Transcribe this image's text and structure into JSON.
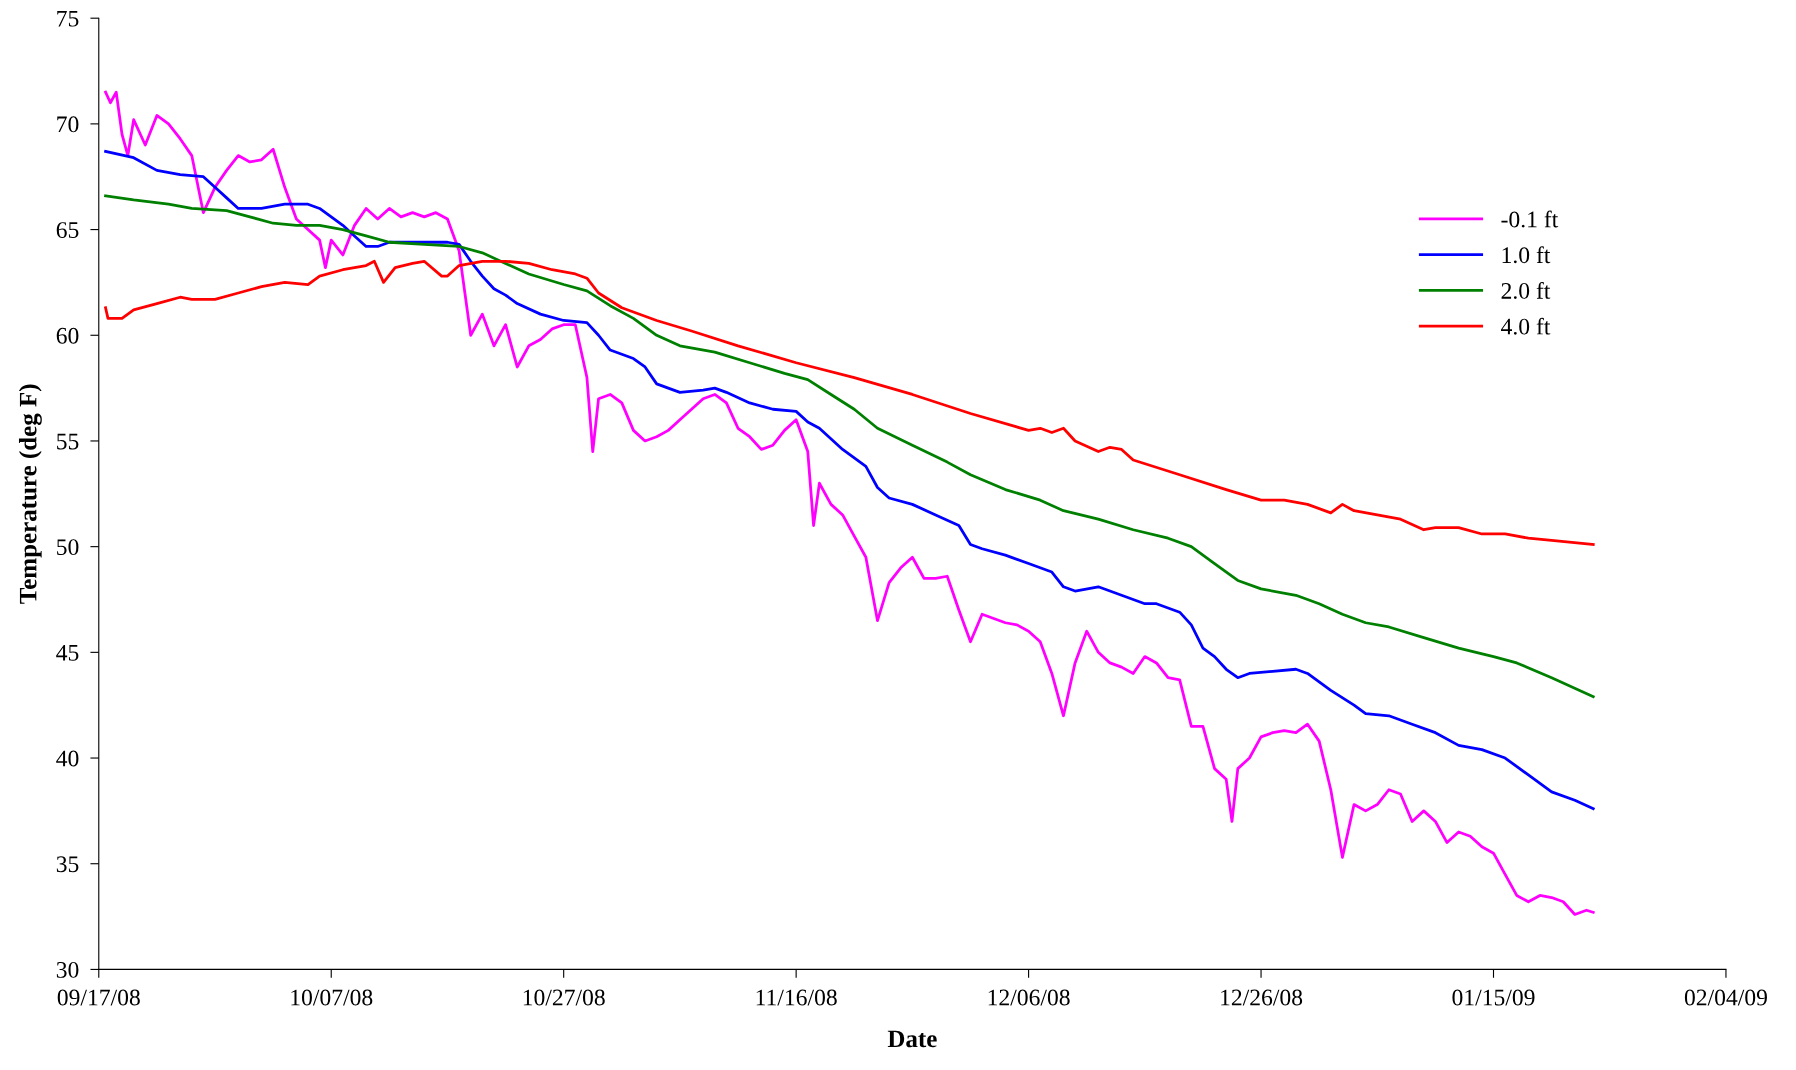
{
  "chart_data": {
    "type": "line",
    "xlabel": "Date",
    "ylabel": "Temperature (deg F)",
    "xlim": [
      "2008-09-17",
      "2009-02-04"
    ],
    "xticks": [
      {
        "value": "2008-09-17",
        "label": "09/17/08"
      },
      {
        "value": "2008-10-07",
        "label": "10/07/08"
      },
      {
        "value": "2008-10-27",
        "label": "10/27/08"
      },
      {
        "value": "2008-11-16",
        "label": "11/16/08"
      },
      {
        "value": "2008-12-06",
        "label": "12/06/08"
      },
      {
        "value": "2008-12-26",
        "label": "12/26/08"
      },
      {
        "value": "2009-01-15",
        "label": "01/15/09"
      },
      {
        "value": "2009-02-04",
        "label": "02/04/09"
      }
    ],
    "ylim": [
      30,
      75
    ],
    "yticks": [
      30,
      35,
      40,
      45,
      50,
      55,
      60,
      65,
      70,
      75
    ],
    "grid": false,
    "legend": "top right",
    "marker": "none",
    "line_style": "solid",
    "series": [
      {
        "name": "-0.1 ft",
        "color": "#ff00ff",
        "x": [
          "2008-09-17T14:00",
          "2008-09-18",
          "2008-09-18T12:00",
          "2008-09-19",
          "2008-09-19T12:00",
          "2008-09-20",
          "2008-09-21",
          "2008-09-22",
          "2008-09-23",
          "2008-09-24",
          "2008-09-25",
          "2008-09-26",
          "2008-09-27",
          "2008-09-28",
          "2008-09-29",
          "2008-09-30",
          "2008-10-01",
          "2008-10-02",
          "2008-10-03",
          "2008-10-04",
          "2008-10-05",
          "2008-10-06",
          "2008-10-06T12:00",
          "2008-10-07",
          "2008-10-08",
          "2008-10-09",
          "2008-10-10",
          "2008-10-11",
          "2008-10-12",
          "2008-10-13",
          "2008-10-14",
          "2008-10-15",
          "2008-10-16",
          "2008-10-17",
          "2008-10-18",
          "2008-10-18T12:00",
          "2008-10-19",
          "2008-10-20",
          "2008-10-21",
          "2008-10-22",
          "2008-10-23",
          "2008-10-24",
          "2008-10-25",
          "2008-10-26",
          "2008-10-27",
          "2008-10-28",
          "2008-10-29",
          "2008-10-29T12:00",
          "2008-10-30",
          "2008-10-31",
          "2008-11-01",
          "2008-11-02",
          "2008-11-03",
          "2008-11-04",
          "2008-11-05",
          "2008-11-06",
          "2008-11-07",
          "2008-11-08",
          "2008-11-09",
          "2008-11-10",
          "2008-11-11",
          "2008-11-12",
          "2008-11-13",
          "2008-11-14",
          "2008-11-15",
          "2008-11-16",
          "2008-11-17",
          "2008-11-17T12:00",
          "2008-11-18",
          "2008-11-19",
          "2008-11-20",
          "2008-11-21",
          "2008-11-22",
          "2008-11-23",
          "2008-11-24",
          "2008-11-25",
          "2008-11-26",
          "2008-11-27",
          "2008-11-28",
          "2008-11-29",
          "2008-11-30",
          "2008-12-01",
          "2008-12-02",
          "2008-12-03",
          "2008-12-04",
          "2008-12-05",
          "2008-12-06",
          "2008-12-07",
          "2008-12-08",
          "2008-12-09",
          "2008-12-10",
          "2008-12-11",
          "2008-12-12",
          "2008-12-13",
          "2008-12-14",
          "2008-12-15",
          "2008-12-16",
          "2008-12-17",
          "2008-12-18",
          "2008-12-19",
          "2008-12-20",
          "2008-12-21",
          "2008-12-22",
          "2008-12-23",
          "2008-12-23T12:00",
          "2008-12-24",
          "2008-12-25",
          "2008-12-26",
          "2008-12-27",
          "2008-12-28",
          "2008-12-29",
          "2008-12-30",
          "2008-12-31",
          "2009-01-01",
          "2009-01-02",
          "2009-01-03",
          "2009-01-04",
          "2009-01-05",
          "2009-01-06",
          "2009-01-07",
          "2009-01-08",
          "2009-01-09",
          "2009-01-10",
          "2009-01-11",
          "2009-01-12",
          "2009-01-13",
          "2009-01-14",
          "2009-01-15",
          "2009-01-16",
          "2009-01-17",
          "2009-01-18",
          "2009-01-19",
          "2009-01-20",
          "2009-01-21",
          "2009-01-22",
          "2009-01-23",
          "2009-01-23T14:00"
        ],
        "values": [
          71.5,
          71.0,
          71.5,
          69.5,
          68.5,
          70.2,
          69.0,
          70.4,
          70.0,
          69.3,
          68.5,
          65.8,
          67.0,
          67.8,
          68.5,
          68.2,
          68.3,
          68.8,
          67.0,
          65.5,
          65.0,
          64.5,
          63.2,
          64.5,
          63.8,
          65.2,
          66.0,
          65.5,
          66.0,
          65.6,
          65.8,
          65.6,
          65.8,
          65.5,
          64.0,
          62.0,
          60.0,
          61.0,
          59.5,
          60.5,
          58.5,
          59.5,
          59.8,
          60.3,
          60.5,
          60.5,
          58.0,
          54.5,
          57.0,
          57.2,
          56.8,
          55.5,
          55.0,
          55.2,
          55.5,
          56.0,
          56.5,
          57.0,
          57.2,
          56.8,
          55.6,
          55.2,
          54.6,
          54.8,
          55.5,
          56.0,
          54.5,
          51.0,
          53.0,
          52.0,
          51.5,
          50.5,
          49.5,
          46.5,
          48.3,
          49.0,
          49.5,
          48.5,
          48.5,
          48.6,
          47.0,
          45.5,
          46.8,
          46.6,
          46.4,
          46.3,
          46.0,
          45.5,
          44.0,
          42.0,
          44.5,
          46.0,
          45.0,
          44.5,
          44.3,
          44.0,
          44.8,
          44.5,
          43.8,
          43.7,
          41.5,
          41.5,
          39.5,
          39.0,
          37.0,
          39.5,
          40.0,
          41.0,
          41.2,
          41.3,
          41.2,
          41.6,
          40.8,
          38.5,
          35.3,
          37.8,
          37.5,
          37.8,
          38.5,
          38.3,
          37.0,
          37.5,
          37.0,
          36.0,
          36.5,
          36.3,
          35.8,
          35.5,
          34.5,
          33.5,
          33.2,
          33.5,
          33.4,
          33.2,
          32.6,
          32.8,
          32.7
        ]
      },
      {
        "name": "1.0 ft",
        "color": "#0000ff",
        "x": [
          "2008-09-17T14:00",
          "2008-09-20",
          "2008-09-22",
          "2008-09-24",
          "2008-09-26",
          "2008-09-27",
          "2008-09-28",
          "2008-09-29",
          "2008-10-01",
          "2008-10-03",
          "2008-10-05",
          "2008-10-06",
          "2008-10-08",
          "2008-10-09",
          "2008-10-10",
          "2008-10-11",
          "2008-10-12",
          "2008-10-14",
          "2008-10-17",
          "2008-10-18",
          "2008-10-19",
          "2008-10-20",
          "2008-10-21",
          "2008-10-22",
          "2008-10-23",
          "2008-10-25",
          "2008-10-27",
          "2008-10-29",
          "2008-10-30",
          "2008-10-31",
          "2008-11-02",
          "2008-11-03",
          "2008-11-04",
          "2008-11-06",
          "2008-11-08",
          "2008-11-09",
          "2008-11-10",
          "2008-11-12",
          "2008-11-14",
          "2008-11-16",
          "2008-11-17",
          "2008-11-18",
          "2008-11-20",
          "2008-11-22",
          "2008-11-23",
          "2008-11-24",
          "2008-11-26",
          "2008-11-28",
          "2008-11-30",
          "2008-12-01",
          "2008-12-02",
          "2008-12-04",
          "2008-12-06",
          "2008-12-08",
          "2008-12-09",
          "2008-12-10",
          "2008-12-12",
          "2008-12-14",
          "2008-12-16",
          "2008-12-17",
          "2008-12-19",
          "2008-12-20",
          "2008-12-21",
          "2008-12-22",
          "2008-12-23",
          "2008-12-24",
          "2008-12-25",
          "2008-12-27",
          "2008-12-29",
          "2008-12-30",
          "2009-01-01",
          "2009-01-03",
          "2009-01-04",
          "2009-01-06",
          "2009-01-08",
          "2009-01-10",
          "2009-01-12",
          "2009-01-14",
          "2009-01-16",
          "2009-01-18",
          "2009-01-20",
          "2009-01-22",
          "2009-01-23T14:00"
        ],
        "values": [
          68.7,
          68.4,
          67.8,
          67.6,
          67.5,
          67.0,
          66.5,
          66.0,
          66.0,
          66.2,
          66.2,
          66.0,
          65.2,
          64.7,
          64.2,
          64.2,
          64.4,
          64.4,
          64.4,
          64.3,
          63.5,
          62.8,
          62.2,
          61.9,
          61.5,
          61.0,
          60.7,
          60.6,
          60.0,
          59.3,
          58.9,
          58.5,
          57.7,
          57.3,
          57.4,
          57.5,
          57.3,
          56.8,
          56.5,
          56.4,
          55.9,
          55.6,
          54.6,
          53.8,
          52.8,
          52.3,
          52.0,
          51.5,
          51.0,
          50.1,
          49.9,
          49.6,
          49.2,
          48.8,
          48.1,
          47.9,
          48.1,
          47.7,
          47.3,
          47.3,
          46.9,
          46.3,
          45.2,
          44.8,
          44.2,
          43.8,
          44.0,
          44.1,
          44.2,
          44.0,
          43.2,
          42.5,
          42.1,
          42.0,
          41.6,
          41.2,
          40.6,
          40.4,
          40.0,
          39.2,
          38.4,
          38.0,
          37.6
        ]
      },
      {
        "name": "2.0 ft",
        "color": "#008000",
        "x": [
          "2008-09-17T14:00",
          "2008-09-20",
          "2008-09-23",
          "2008-09-25",
          "2008-09-28",
          "2008-09-30",
          "2008-10-02",
          "2008-10-04",
          "2008-10-06",
          "2008-10-08",
          "2008-10-10",
          "2008-10-12",
          "2008-10-15",
          "2008-10-18",
          "2008-10-20",
          "2008-10-22",
          "2008-10-24",
          "2008-10-27",
          "2008-10-29",
          "2008-10-31",
          "2008-11-02",
          "2008-11-04",
          "2008-11-06",
          "2008-11-09",
          "2008-11-12",
          "2008-11-15",
          "2008-11-17",
          "2008-11-19",
          "2008-11-21",
          "2008-11-23",
          "2008-11-26",
          "2008-11-29",
          "2008-12-01",
          "2008-12-04",
          "2008-12-07",
          "2008-12-09",
          "2008-12-12",
          "2008-12-15",
          "2008-12-18",
          "2008-12-20",
          "2008-12-22",
          "2008-12-24",
          "2008-12-26",
          "2008-12-29",
          "2008-12-31",
          "2009-01-02",
          "2009-01-04",
          "2009-01-06",
          "2009-01-09",
          "2009-01-12",
          "2009-01-15",
          "2009-01-17",
          "2009-01-20",
          "2009-01-23T14:00"
        ],
        "values": [
          66.6,
          66.4,
          66.2,
          66.0,
          65.9,
          65.6,
          65.3,
          65.2,
          65.2,
          65.0,
          64.7,
          64.4,
          64.3,
          64.2,
          63.9,
          63.4,
          62.9,
          62.4,
          62.1,
          61.4,
          60.8,
          60.0,
          59.5,
          59.2,
          58.7,
          58.2,
          57.9,
          57.2,
          56.5,
          55.6,
          54.8,
          54.0,
          53.4,
          52.7,
          52.2,
          51.7,
          51.3,
          50.8,
          50.4,
          50.0,
          49.2,
          48.4,
          48.0,
          47.7,
          47.3,
          46.8,
          46.4,
          46.2,
          45.7,
          45.2,
          44.8,
          44.5,
          43.8,
          42.9
        ]
      },
      {
        "name": "4.0 ft",
        "color": "#ff0000",
        "x": [
          "2008-09-17T14:00",
          "2008-09-17T19:00",
          "2008-09-19",
          "2008-09-20",
          "2008-09-22",
          "2008-09-24",
          "2008-09-25",
          "2008-09-27",
          "2008-09-29",
          "2008-10-01",
          "2008-10-03",
          "2008-10-05",
          "2008-10-06",
          "2008-10-08",
          "2008-10-10",
          "2008-10-10T17:00",
          "2008-10-11T12:00",
          "2008-10-12T12:00",
          "2008-10-14",
          "2008-10-15",
          "2008-10-16T12:00",
          "2008-10-17",
          "2008-10-18",
          "2008-10-20",
          "2008-10-22",
          "2008-10-24",
          "2008-10-26",
          "2008-10-28",
          "2008-10-29",
          "2008-10-30",
          "2008-11-01",
          "2008-11-04",
          "2008-11-07",
          "2008-11-11",
          "2008-11-16",
          "2008-11-21",
          "2008-11-26",
          "2008-12-01",
          "2008-12-06",
          "2008-12-07",
          "2008-12-08",
          "2008-12-09",
          "2008-12-10",
          "2008-12-12",
          "2008-12-13",
          "2008-12-14",
          "2008-12-15",
          "2008-12-19",
          "2008-12-23",
          "2008-12-26",
          "2008-12-28",
          "2008-12-30",
          "2009-01-01",
          "2009-01-02",
          "2009-01-03",
          "2009-01-05",
          "2009-01-07",
          "2009-01-09",
          "2009-01-10",
          "2009-01-12",
          "2009-01-14",
          "2009-01-16",
          "2009-01-18",
          "2009-01-20",
          "2009-01-23T14:00"
        ],
        "values": [
          61.3,
          60.8,
          60.8,
          61.2,
          61.5,
          61.8,
          61.7,
          61.7,
          62.0,
          62.3,
          62.5,
          62.4,
          62.8,
          63.1,
          63.3,
          63.5,
          62.5,
          63.2,
          63.4,
          63.5,
          62.8,
          62.8,
          63.3,
          63.5,
          63.5,
          63.4,
          63.1,
          62.9,
          62.7,
          62.0,
          61.3,
          60.7,
          60.2,
          59.5,
          58.7,
          58.0,
          57.2,
          56.3,
          55.5,
          55.6,
          55.4,
          55.6,
          55.0,
          54.5,
          54.7,
          54.6,
          54.1,
          53.4,
          52.7,
          52.2,
          52.2,
          52.0,
          51.6,
          52.0,
          51.7,
          51.5,
          51.3,
          50.8,
          50.9,
          50.9,
          50.6,
          50.6,
          50.4,
          50.3,
          50.1
        ]
      }
    ]
  }
}
